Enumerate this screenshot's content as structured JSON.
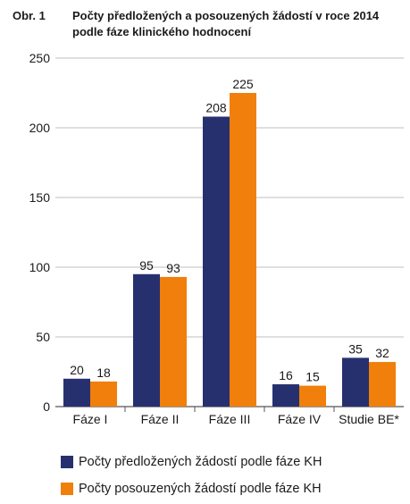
{
  "title": {
    "prefix": "Obr. 1",
    "text": "Počty předložených a posouzených žádostí v roce 2014 podle fáze klinického hodnocení"
  },
  "colors": {
    "series1": "#27306f",
    "series2": "#f07f0b",
    "axis": "#555555",
    "grid": "#bfbfbf"
  },
  "chart_data": {
    "type": "bar",
    "title": "Počty předložených a posouzených žádostí v roce 2014 podle fáze klinického hodnocení",
    "xlabel": "",
    "ylabel": "",
    "categories": [
      "Fáze I",
      "Fáze II",
      "Fáze III",
      "Fáze IV",
      "Studie BE*"
    ],
    "series": [
      {
        "name": "Počty předložených žádostí podle fáze KH",
        "values": [
          20,
          95,
          208,
          16,
          35
        ],
        "color": "#27306f"
      },
      {
        "name": "Počty posouzených žádostí podle fáze KH",
        "values": [
          18,
          93,
          225,
          15,
          32
        ],
        "color": "#f07f0b"
      }
    ],
    "ylim": [
      0,
      250
    ],
    "yticks": [
      0,
      50,
      100,
      150,
      200,
      250
    ],
    "grid": true,
    "legend": "bottom",
    "data_labels": true
  }
}
